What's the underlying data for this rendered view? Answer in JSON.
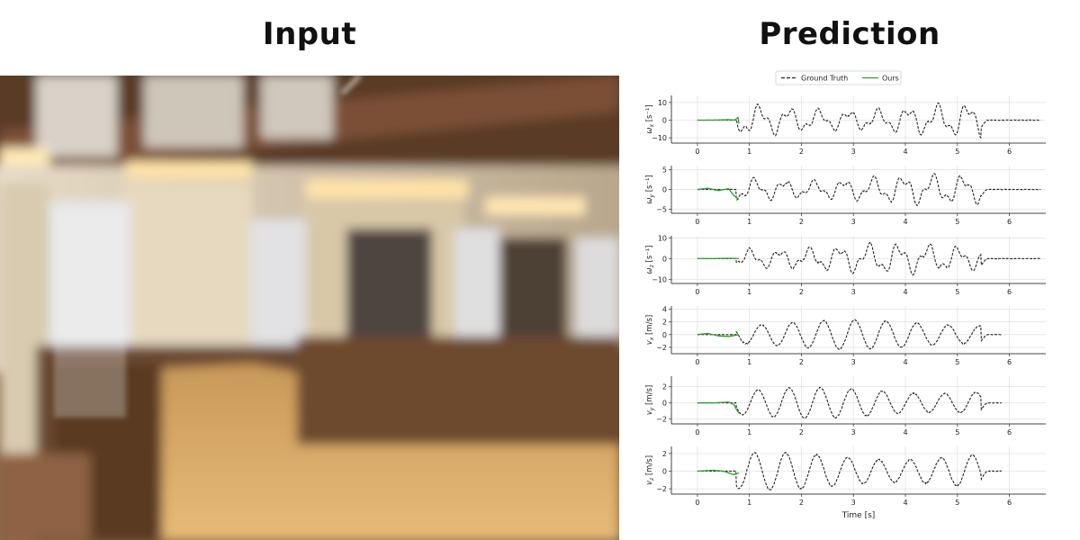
{
  "titles": {
    "input": "Input",
    "prediction": "Prediction"
  },
  "legend": {
    "ground_truth": "Ground Truth",
    "ours": "Ours"
  },
  "colors": {
    "ground_truth": "#222222",
    "ours": "#2ca02c",
    "grid": "#e2e2e2",
    "axis": "#444444"
  },
  "chart_data": [
    {
      "type": "line",
      "ylabel": "ω_x [s⁻¹]",
      "ylabel_sym": "ω",
      "ylabel_sub": "x",
      "ylabel_unit": "[s⁻¹]",
      "xlim": [
        -0.5,
        6.7
      ],
      "ylim": [
        -13,
        14
      ],
      "yticks": [
        -10,
        0,
        10
      ],
      "xticks": [
        0,
        1,
        2,
        3,
        4,
        5,
        6
      ],
      "xlabel": "",
      "gt_seed": 1,
      "gt_amp": 9.5,
      "gt_end": 6.6,
      "gt_mode": "extended",
      "x": [
        0.0,
        0.3,
        0.6,
        0.72,
        0.78,
        0.8
      ],
      "ours": [
        0.0,
        0.0,
        0.3,
        0.0,
        1.5,
        -2.0
      ],
      "series": [
        {
          "name": "Ground Truth"
        },
        {
          "name": "Ours"
        }
      ]
    },
    {
      "type": "line",
      "ylabel": "ω_y [s⁻¹]",
      "ylabel_sym": "ω",
      "ylabel_sub": "y",
      "ylabel_unit": "[s⁻¹]",
      "xlim": [
        -0.5,
        6.7
      ],
      "ylim": [
        -6,
        6
      ],
      "yticks": [
        -5,
        0,
        5
      ],
      "xticks": [
        0,
        1,
        2,
        3,
        4,
        5,
        6
      ],
      "xlabel": "",
      "gt_seed": 2,
      "gt_amp": 3.8,
      "gt_end": 6.6,
      "gt_mode": "extended",
      "x": [
        0.0,
        0.2,
        0.4,
        0.6,
        0.7,
        0.8
      ],
      "ours": [
        0.0,
        0.3,
        -0.3,
        0.2,
        -1.5,
        -2.5
      ],
      "series": [
        {
          "name": "Ground Truth"
        },
        {
          "name": "Ours"
        }
      ]
    },
    {
      "type": "line",
      "ylabel": "ω_z [s⁻¹]",
      "ylabel_sym": "ω",
      "ylabel_sub": "z",
      "ylabel_unit": "[s⁻¹]",
      "xlim": [
        -0.5,
        6.7
      ],
      "ylim": [
        -12,
        11
      ],
      "yticks": [
        -10,
        0,
        10
      ],
      "xticks": [
        0,
        1,
        2,
        3,
        4,
        5,
        6
      ],
      "xlabel": "",
      "gt_seed": 3,
      "gt_amp": 7.5,
      "gt_end": 6.6,
      "gt_mode": "extended",
      "x": [
        0.0,
        0.3,
        0.6,
        0.8
      ],
      "ours": [
        0.0,
        0.0,
        0.2,
        0.0
      ],
      "series": [
        {
          "name": "Ground Truth"
        },
        {
          "name": "Ours"
        }
      ]
    },
    {
      "type": "line",
      "ylabel": "v_x [m/s]",
      "ylabel_sym": "v",
      "ylabel_sub": "x",
      "ylabel_unit": "[m/s]",
      "xlim": [
        -0.5,
        6.7
      ],
      "ylim": [
        -3,
        4.5
      ],
      "yticks": [
        -2,
        0,
        2,
        4
      ],
      "xticks": [
        0,
        1,
        2,
        3,
        4,
        5,
        6
      ],
      "xlabel": "",
      "gt_seed": 4,
      "gt_amp": 2.3,
      "gt_end": 5.85,
      "gt_mode": "sine",
      "x": [
        0.0,
        0.2,
        0.4,
        0.6,
        0.8
      ],
      "ours": [
        0.0,
        0.2,
        -0.2,
        -0.3,
        0.0
      ],
      "series": [
        {
          "name": "Ground Truth"
        },
        {
          "name": "Ours"
        }
      ]
    },
    {
      "type": "line",
      "ylabel": "v_y [m/s]",
      "ylabel_sym": "v",
      "ylabel_sub": "y",
      "ylabel_unit": "[m/s]",
      "xlim": [
        -0.5,
        6.7
      ],
      "ylim": [
        -2.6,
        3.3
      ],
      "yticks": [
        -2,
        0,
        2
      ],
      "xticks": [
        0,
        1,
        2,
        3,
        4,
        5,
        6
      ],
      "xlabel": "",
      "gt_seed": 5,
      "gt_amp": 1.9,
      "gt_end": 5.85,
      "gt_mode": "sine",
      "x": [
        0.0,
        0.3,
        0.6,
        0.7,
        0.75,
        0.8
      ],
      "ours": [
        0.0,
        0.0,
        0.1,
        -0.2,
        -0.8,
        -1.3
      ],
      "series": [
        {
          "name": "Ground Truth"
        },
        {
          "name": "Ours"
        }
      ]
    },
    {
      "type": "line",
      "ylabel": "v_z [m/s]",
      "ylabel_sym": "v",
      "ylabel_sub": "z",
      "ylabel_unit": "[m/s]",
      "xlim": [
        -0.5,
        6.7
      ],
      "ylim": [
        -2.6,
        2.8
      ],
      "yticks": [
        -2,
        0,
        2
      ],
      "xticks": [
        0,
        1,
        2,
        3,
        4,
        5,
        6
      ],
      "xlabel": "Time [s]",
      "gt_seed": 6,
      "gt_amp": 2.1,
      "gt_end": 5.85,
      "gt_mode": "sine",
      "x": [
        0.0,
        0.3,
        0.5,
        0.7,
        0.8
      ],
      "ours": [
        0.0,
        0.1,
        0.0,
        -0.4,
        -0.2
      ],
      "series": [
        {
          "name": "Ground Truth"
        },
        {
          "name": "Ours"
        }
      ]
    }
  ]
}
